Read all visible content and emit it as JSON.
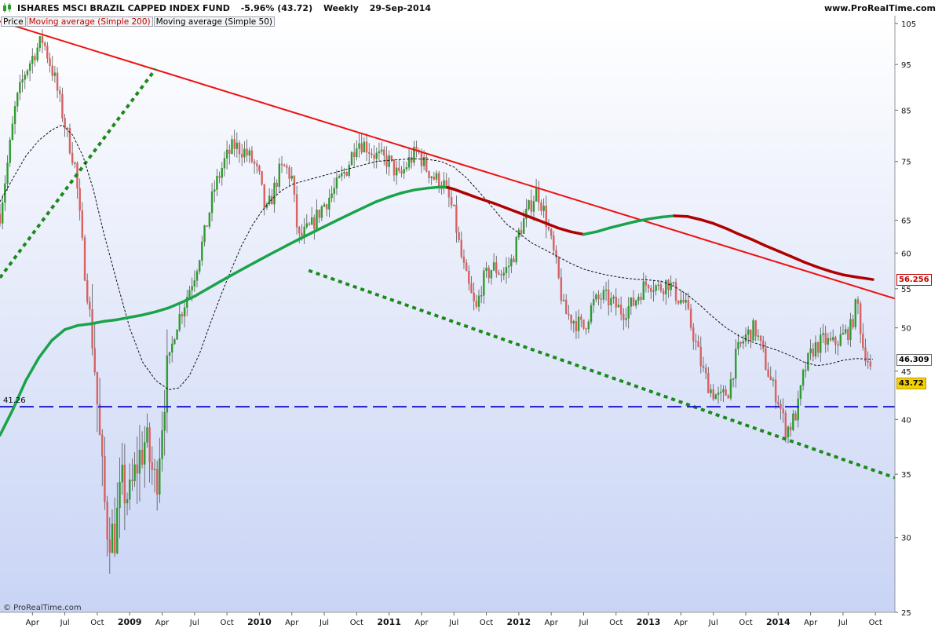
{
  "header": {
    "title": "ISHARES MSCI BRAZIL CAPPED INDEX FUND",
    "change": "-5.96% (43.72)",
    "period": "Weekly",
    "date": "29-Sep-2014",
    "site": "www.ProRealTime.com"
  },
  "legend": {
    "price": "Price",
    "ma200": "Moving average (Simple 200)",
    "ma50": "Moving average (Simple 50)"
  },
  "watermark": "© ProRealTime.com",
  "tags": {
    "ma200_value": "56.256",
    "ma50_value": "46.309",
    "last_price": "43.72",
    "support_level": "41.26"
  },
  "colors": {
    "up_candle": "#2e9b2e",
    "down_candle": "#d96060",
    "ma200_up": "#1aa34a",
    "ma200_down": "#b00000",
    "resistance": "#ee1111",
    "channel": "#1a8a1a",
    "support": "#1a1acc",
    "last_price_bg": "#f5d000"
  },
  "chart_data": {
    "type": "candlestick",
    "scale": "log",
    "ylim": [
      25,
      107
    ],
    "y_ticks": [
      105,
      95,
      85,
      75,
      65,
      60,
      55,
      50,
      45,
      40,
      35,
      30,
      25
    ],
    "x_ticks": [
      {
        "label": "Apr",
        "t": 2008.25
      },
      {
        "label": "Jul",
        "t": 2008.5
      },
      {
        "label": "Oct",
        "t": 2008.75
      },
      {
        "label": "2009",
        "t": 2009.0
      },
      {
        "label": "Apr",
        "t": 2009.25
      },
      {
        "label": "Jul",
        "t": 2009.5
      },
      {
        "label": "Oct",
        "t": 2009.75
      },
      {
        "label": "2010",
        "t": 2010.0
      },
      {
        "label": "Apr",
        "t": 2010.25
      },
      {
        "label": "Jul",
        "t": 2010.5
      },
      {
        "label": "Oct",
        "t": 2010.75
      },
      {
        "label": "2011",
        "t": 2011.0
      },
      {
        "label": "Apr",
        "t": 2011.25
      },
      {
        "label": "Jul",
        "t": 2011.5
      },
      {
        "label": "Oct",
        "t": 2011.75
      },
      {
        "label": "2012",
        "t": 2012.0
      },
      {
        "label": "Apr",
        "t": 2012.25
      },
      {
        "label": "Jul",
        "t": 2012.5
      },
      {
        "label": "Oct",
        "t": 2012.75
      },
      {
        "label": "2013",
        "t": 2013.0
      },
      {
        "label": "Apr",
        "t": 2013.25
      },
      {
        "label": "Jul",
        "t": 2013.5
      },
      {
        "label": "Oct",
        "t": 2013.75
      },
      {
        "label": "2014",
        "t": 2014.0
      },
      {
        "label": "Apr",
        "t": 2014.25
      },
      {
        "label": "Jul",
        "t": 2014.5
      },
      {
        "label": "Oct",
        "t": 2014.75
      }
    ],
    "xlim": [
      2008.0,
      2014.9
    ],
    "price_path": [
      [
        2008.0,
        66
      ],
      [
        2008.06,
        75
      ],
      [
        2008.12,
        86
      ],
      [
        2008.19,
        93
      ],
      [
        2008.27,
        98
      ],
      [
        2008.33,
        101
      ],
      [
        2008.42,
        92
      ],
      [
        2008.5,
        82
      ],
      [
        2008.58,
        74
      ],
      [
        2008.65,
        58
      ],
      [
        2008.72,
        48
      ],
      [
        2008.78,
        36
      ],
      [
        2008.82,
        31
      ],
      [
        2008.88,
        30
      ],
      [
        2008.94,
        34
      ],
      [
        2009.0,
        33
      ],
      [
        2009.06,
        36
      ],
      [
        2009.12,
        38
      ],
      [
        2009.2,
        34
      ],
      [
        2009.27,
        43
      ],
      [
        2009.35,
        50
      ],
      [
        2009.42,
        53
      ],
      [
        2009.5,
        57
      ],
      [
        2009.58,
        63
      ],
      [
        2009.65,
        70
      ],
      [
        2009.73,
        75
      ],
      [
        2009.8,
        78
      ],
      [
        2009.88,
        77
      ],
      [
        2009.95,
        75
      ],
      [
        2010.0,
        72
      ],
      [
        2010.05,
        66
      ],
      [
        2010.1,
        69
      ],
      [
        2010.15,
        73
      ],
      [
        2010.2,
        74
      ],
      [
        2010.25,
        72
      ],
      [
        2010.3,
        62
      ],
      [
        2010.35,
        63
      ],
      [
        2010.4,
        64
      ],
      [
        2010.48,
        67
      ],
      [
        2010.58,
        70
      ],
      [
        2010.68,
        74
      ],
      [
        2010.75,
        79
      ],
      [
        2010.82,
        78
      ],
      [
        2010.9,
        76
      ],
      [
        2011.0,
        75
      ],
      [
        2011.08,
        72
      ],
      [
        2011.15,
        75
      ],
      [
        2011.22,
        77
      ],
      [
        2011.28,
        74
      ],
      [
        2011.35,
        72
      ],
      [
        2011.42,
        71
      ],
      [
        2011.5,
        66
      ],
      [
        2011.55,
        60
      ],
      [
        2011.6,
        56
      ],
      [
        2011.67,
        52
      ],
      [
        2011.72,
        56
      ],
      [
        2011.8,
        58
      ],
      [
        2011.88,
        57
      ],
      [
        2011.95,
        59
      ],
      [
        2012.0,
        63
      ],
      [
        2012.08,
        67
      ],
      [
        2012.14,
        70
      ],
      [
        2012.2,
        66
      ],
      [
        2012.28,
        59
      ],
      [
        2012.35,
        52
      ],
      [
        2012.42,
        51
      ],
      [
        2012.5,
        50
      ],
      [
        2012.57,
        53
      ],
      [
        2012.65,
        54
      ],
      [
        2012.73,
        53
      ],
      [
        2012.8,
        52
      ],
      [
        2012.88,
        53
      ],
      [
        2012.95,
        55
      ],
      [
        2013.0,
        56
      ],
      [
        2013.08,
        55
      ],
      [
        2013.15,
        56
      ],
      [
        2013.22,
        54
      ],
      [
        2013.28,
        53
      ],
      [
        2013.35,
        49
      ],
      [
        2013.42,
        45
      ],
      [
        2013.48,
        43
      ],
      [
        2013.55,
        42
      ],
      [
        2013.62,
        43
      ],
      [
        2013.68,
        47
      ],
      [
        2013.75,
        49
      ],
      [
        2013.82,
        50
      ],
      [
        2013.88,
        47
      ],
      [
        2013.94,
        44
      ],
      [
        2014.0,
        42
      ],
      [
        2014.06,
        39
      ],
      [
        2014.1,
        39.5
      ],
      [
        2014.15,
        41
      ],
      [
        2014.2,
        45
      ],
      [
        2014.27,
        47.5
      ],
      [
        2014.35,
        48.5
      ],
      [
        2014.42,
        48
      ],
      [
        2014.5,
        49
      ],
      [
        2014.56,
        50
      ],
      [
        2014.61,
        53.5
      ],
      [
        2014.65,
        48
      ],
      [
        2014.7,
        46
      ],
      [
        2014.73,
        43.72
      ]
    ],
    "ma200": [
      [
        2008.0,
        38.5
      ],
      [
        2008.1,
        41
      ],
      [
        2008.2,
        44
      ],
      [
        2008.3,
        46.5
      ],
      [
        2008.4,
        48.5
      ],
      [
        2008.5,
        49.8
      ],
      [
        2008.6,
        50.3
      ],
      [
        2008.7,
        50.5
      ],
      [
        2008.8,
        50.8
      ],
      [
        2008.9,
        51
      ],
      [
        2009.0,
        51.3
      ],
      [
        2009.1,
        51.6
      ],
      [
        2009.2,
        52
      ],
      [
        2009.3,
        52.5
      ],
      [
        2009.4,
        53.2
      ],
      [
        2009.5,
        54
      ],
      [
        2009.6,
        55
      ],
      [
        2009.7,
        56
      ],
      [
        2009.8,
        57
      ],
      [
        2009.9,
        58
      ],
      [
        2010.0,
        59
      ],
      [
        2010.1,
        60
      ],
      [
        2010.2,
        61
      ],
      [
        2010.3,
        62
      ],
      [
        2010.4,
        63
      ],
      [
        2010.5,
        64
      ],
      [
        2010.6,
        65
      ],
      [
        2010.7,
        66
      ],
      [
        2010.8,
        67
      ],
      [
        2010.9,
        68
      ],
      [
        2011.0,
        68.8
      ],
      [
        2011.1,
        69.5
      ],
      [
        2011.2,
        70
      ],
      [
        2011.3,
        70.3
      ],
      [
        2011.4,
        70.5
      ],
      [
        2011.45,
        70.4
      ],
      [
        2011.5,
        70.1
      ],
      [
        2011.6,
        69.3
      ],
      [
        2011.7,
        68.5
      ],
      [
        2011.8,
        67.8
      ],
      [
        2011.9,
        67
      ],
      [
        2012.0,
        66.2
      ],
      [
        2012.1,
        65.4
      ],
      [
        2012.2,
        64.6
      ],
      [
        2012.3,
        63.8
      ],
      [
        2012.4,
        63.2
      ],
      [
        2012.5,
        62.8
      ],
      [
        2012.6,
        63.2
      ],
      [
        2012.7,
        63.8
      ],
      [
        2012.8,
        64.3
      ],
      [
        2012.9,
        64.8
      ],
      [
        2013.0,
        65.2
      ],
      [
        2013.1,
        65.5
      ],
      [
        2013.2,
        65.7
      ],
      [
        2013.3,
        65.6
      ],
      [
        2013.4,
        65.1
      ],
      [
        2013.5,
        64.5
      ],
      [
        2013.6,
        63.7
      ],
      [
        2013.7,
        62.8
      ],
      [
        2013.8,
        62
      ],
      [
        2013.9,
        61.1
      ],
      [
        2014.0,
        60.3
      ],
      [
        2014.1,
        59.5
      ],
      [
        2014.2,
        58.7
      ],
      [
        2014.3,
        58
      ],
      [
        2014.4,
        57.4
      ],
      [
        2014.5,
        56.9
      ],
      [
        2014.6,
        56.6
      ],
      [
        2014.73,
        56.256
      ]
    ],
    "ma200_turn_down": 2011.47,
    "ma200_turn_up": 2012.55,
    "ma200_turn_down2": 2013.2,
    "ma50": [
      [
        2008.0,
        68
      ],
      [
        2008.1,
        72
      ],
      [
        2008.2,
        76
      ],
      [
        2008.3,
        79
      ],
      [
        2008.4,
        81
      ],
      [
        2008.48,
        82
      ],
      [
        2008.56,
        80
      ],
      [
        2008.64,
        76
      ],
      [
        2008.72,
        70
      ],
      [
        2008.8,
        63
      ],
      [
        2008.9,
        56
      ],
      [
        2009.0,
        50
      ],
      [
        2009.1,
        46
      ],
      [
        2009.2,
        44
      ],
      [
        2009.3,
        43
      ],
      [
        2009.38,
        43.2
      ],
      [
        2009.46,
        44.5
      ],
      [
        2009.54,
        47
      ],
      [
        2009.62,
        50.5
      ],
      [
        2009.7,
        54
      ],
      [
        2009.78,
        57.5
      ],
      [
        2009.86,
        61
      ],
      [
        2009.94,
        64
      ],
      [
        2010.02,
        66.5
      ],
      [
        2010.1,
        68.5
      ],
      [
        2010.18,
        70
      ],
      [
        2010.26,
        71
      ],
      [
        2010.34,
        71.5
      ],
      [
        2010.42,
        72
      ],
      [
        2010.5,
        72.5
      ],
      [
        2010.58,
        73
      ],
      [
        2010.66,
        73.5
      ],
      [
        2010.74,
        74
      ],
      [
        2010.82,
        74.5
      ],
      [
        2010.9,
        75
      ],
      [
        2011.0,
        75.2
      ],
      [
        2011.1,
        75.4
      ],
      [
        2011.2,
        75.5
      ],
      [
        2011.3,
        75.4
      ],
      [
        2011.4,
        75
      ],
      [
        2011.5,
        74
      ],
      [
        2011.6,
        72
      ],
      [
        2011.7,
        69.5
      ],
      [
        2011.8,
        67
      ],
      [
        2011.9,
        64.5
      ],
      [
        2012.0,
        63
      ],
      [
        2012.1,
        61.5
      ],
      [
        2012.2,
        60.5
      ],
      [
        2012.3,
        59.5
      ],
      [
        2012.4,
        58.5
      ],
      [
        2012.5,
        57.7
      ],
      [
        2012.6,
        57.2
      ],
      [
        2012.7,
        56.8
      ],
      [
        2012.8,
        56.5
      ],
      [
        2012.9,
        56.3
      ],
      [
        2013.0,
        56.2
      ],
      [
        2013.1,
        56
      ],
      [
        2013.2,
        55.3
      ],
      [
        2013.3,
        54.2
      ],
      [
        2013.4,
        52.8
      ],
      [
        2013.5,
        51.3
      ],
      [
        2013.6,
        50
      ],
      [
        2013.7,
        49
      ],
      [
        2013.8,
        48.3
      ],
      [
        2013.9,
        47.8
      ],
      [
        2014.0,
        47.3
      ],
      [
        2014.1,
        46.7
      ],
      [
        2014.2,
        46
      ],
      [
        2014.3,
        45.6
      ],
      [
        2014.4,
        45.8
      ],
      [
        2014.5,
        46.2
      ],
      [
        2014.6,
        46.4
      ],
      [
        2014.73,
        46.309
      ]
    ],
    "trendlines": [
      {
        "kind": "resistance",
        "style": "solid",
        "from": [
          2008.0,
          105.5
        ],
        "to": [
          2014.9,
          53.7
        ]
      },
      {
        "kind": "channel-lower",
        "style": "dotted",
        "from": [
          2010.38,
          57.5
        ],
        "to": [
          2014.9,
          34.7
        ]
      },
      {
        "kind": "channel-upper",
        "style": "dotted",
        "from": [
          2008.0,
          56.5
        ],
        "to": [
          2009.2,
          94
        ]
      },
      {
        "kind": "support",
        "style": "dashed",
        "from": [
          2008.0,
          41.26
        ],
        "to": [
          2014.9,
          41.26
        ]
      }
    ]
  }
}
